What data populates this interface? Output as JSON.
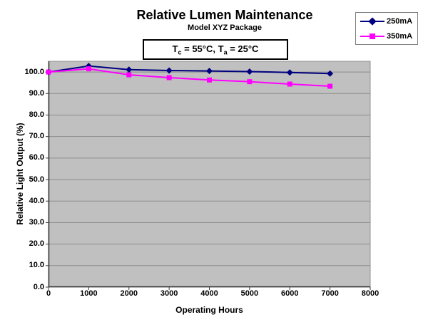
{
  "chart": {
    "title": "Relative Lumen Maintenance",
    "subtitle": "Model XYZ Package",
    "condition": {
      "t1_base": "T",
      "t1_sub": "c",
      "t1_rest": " = 55°C, ",
      "t2_base": "T",
      "t2_sub": "a",
      "t2_rest": " = 25°C"
    }
  },
  "chart_data": {
    "type": "line",
    "title": "Relative Lumen Maintenance",
    "subtitle": "Model XYZ Package",
    "annotation": "Tc = 55°C, Ta = 25°C",
    "xlabel": "Operating Hours",
    "ylabel": "Relative Light Output (%)",
    "x": [
      0,
      1000,
      2000,
      3000,
      4000,
      5000,
      6000,
      7000
    ],
    "series": [
      {
        "name": "250mA",
        "color": "#000080",
        "marker": "diamond",
        "values": [
          100.0,
          102.8,
          101.1,
          100.7,
          100.5,
          100.2,
          99.8,
          99.3
        ]
      },
      {
        "name": "350mA",
        "color": "#FF00FF",
        "marker": "square",
        "values": [
          100.0,
          101.5,
          98.7,
          97.4,
          96.3,
          95.5,
          94.4,
          93.4
        ]
      }
    ],
    "xlim": [
      0,
      8000
    ],
    "ylim": [
      0,
      105
    ],
    "x_ticks": [
      0,
      1000,
      2000,
      3000,
      4000,
      5000,
      6000,
      7000,
      8000
    ],
    "y_ticks": [
      0,
      10,
      20,
      30,
      40,
      50,
      60,
      70,
      80,
      90,
      100
    ],
    "y_tick_decimals": 1,
    "grid": "horizontal",
    "legend_position": "top-right",
    "colors": {
      "plot_bg": "#c0c0c0",
      "grid_color": "#8c8c8c",
      "axis_color": "#3a3a3a",
      "plot_border": "#909090"
    }
  }
}
